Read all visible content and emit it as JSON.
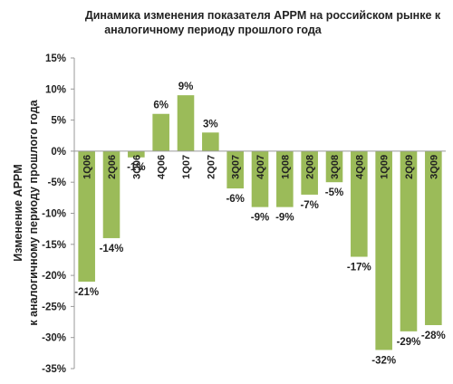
{
  "chart_data": {
    "type": "bar",
    "title": [
      "Динамика изменения показателя APPM на российском рынке к",
      "аналогичному периоду прошлого года"
    ],
    "ylabel": [
      "Изменение APPM",
      "к аналогичному периоду прошлого года"
    ],
    "xlabel": "",
    "categories": [
      "1Q06",
      "2Q06",
      "3Q06",
      "4Q06",
      "1Q07",
      "2Q07",
      "3Q07",
      "4Q07",
      "1Q08",
      "2Q08",
      "3Q08",
      "4Q08",
      "1Q09",
      "2Q09",
      "3Q09"
    ],
    "values": [
      -21,
      -14,
      -1,
      6,
      9,
      3,
      -6,
      -9,
      -9,
      -7,
      -5,
      -17,
      -32,
      -29,
      -28
    ],
    "value_labels": [
      "-21%",
      "-14%",
      "-1%",
      "6%",
      "9%",
      "3%",
      "-6%",
      "-9%",
      "-9%",
      "-7%",
      "-5%",
      "-17%",
      "-32%",
      "-29%",
      "-28%"
    ],
    "ylim": [
      -35,
      15
    ],
    "yticks": [
      15,
      10,
      5,
      0,
      -5,
      -10,
      -15,
      -20,
      -25,
      -30,
      -35
    ],
    "ytick_labels": [
      "15%",
      "10%",
      "5%",
      "0%",
      "-5%",
      "-10%",
      "-15%",
      "-20%",
      "-25%",
      "-30%",
      "-35%"
    ],
    "bar_color": "#9bbb59",
    "grid": false,
    "legend": false
  }
}
